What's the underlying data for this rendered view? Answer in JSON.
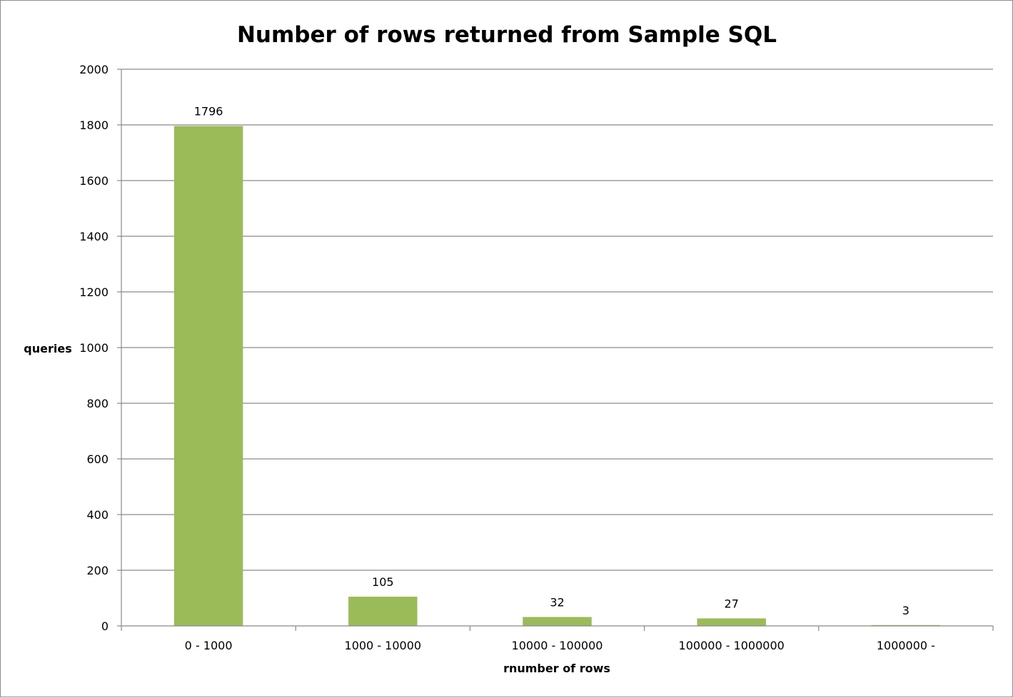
{
  "chart_data": {
    "type": "bar",
    "title": "Number of rows returned from Sample SQL",
    "xlabel": "rnumber of rows",
    "ylabel": "queries",
    "categories": [
      "0 - 1000",
      "1000 - 10000",
      "10000 - 100000",
      "100000 - 1000000",
      "1000000 -"
    ],
    "values": [
      1796,
      105,
      32,
      27,
      3
    ],
    "data_labels": [
      "1796",
      "105",
      "32",
      "27",
      "3"
    ],
    "ylim": [
      0,
      2000
    ],
    "yticks": [
      0,
      200,
      400,
      600,
      800,
      1000,
      1200,
      1400,
      1600,
      1800,
      2000
    ],
    "grid": true,
    "legend": "none",
    "bar_color": "#9bbb59"
  }
}
